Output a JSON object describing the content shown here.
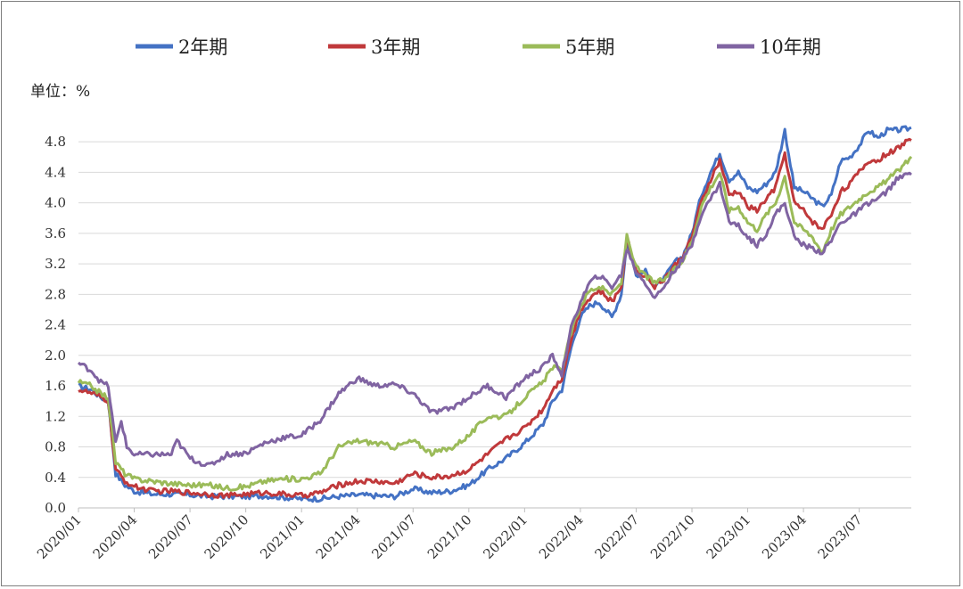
{
  "chart_data": {
    "type": "line",
    "title": "",
    "unit_label": "单位：%",
    "xlabel": "",
    "ylabel": "",
    "ylim": [
      0,
      4.8
    ],
    "yticks": [
      "0.0",
      "0.4",
      "0.8",
      "1.2",
      "1.6",
      "2.0",
      "2.4",
      "2.8",
      "3.2",
      "3.6",
      "4.0",
      "4.4",
      "4.8"
    ],
    "xrange": [
      0,
      44.8
    ],
    "xticks": [
      {
        "label": "2020/01",
        "month": 0
      },
      {
        "label": "2020/04",
        "month": 3
      },
      {
        "label": "2020/07",
        "month": 6
      },
      {
        "label": "2020/10",
        "month": 9
      },
      {
        "label": "2021/01",
        "month": 12
      },
      {
        "label": "2021/04",
        "month": 15
      },
      {
        "label": "2021/07",
        "month": 18
      },
      {
        "label": "2021/10",
        "month": 21
      },
      {
        "label": "2022/01",
        "month": 24
      },
      {
        "label": "2022/04",
        "month": 27
      },
      {
        "label": "2022/07",
        "month": 30
      },
      {
        "label": "2022/10",
        "month": 33
      },
      {
        "label": "2023/01",
        "month": 36
      },
      {
        "label": "2023/04",
        "month": 39
      },
      {
        "label": "2023/07",
        "month": 42
      }
    ],
    "legend_position": "top",
    "grid": true,
    "series": [
      {
        "name": "2年期",
        "color": "#4472c4",
        "points": [
          [
            0,
            1.6
          ],
          [
            0.7,
            1.55
          ],
          [
            1.2,
            1.45
          ],
          [
            1.6,
            1.4
          ],
          [
            2.0,
            0.45
          ],
          [
            2.5,
            0.3
          ],
          [
            3,
            0.22
          ],
          [
            4,
            0.18
          ],
          [
            5,
            0.18
          ],
          [
            6,
            0.17
          ],
          [
            7,
            0.15
          ],
          [
            8,
            0.15
          ],
          [
            9,
            0.15
          ],
          [
            10,
            0.16
          ],
          [
            11,
            0.14
          ],
          [
            12,
            0.12
          ],
          [
            13,
            0.12
          ],
          [
            14,
            0.15
          ],
          [
            15,
            0.17
          ],
          [
            16,
            0.16
          ],
          [
            17,
            0.15
          ],
          [
            18,
            0.25
          ],
          [
            19,
            0.2
          ],
          [
            20,
            0.22
          ],
          [
            21,
            0.3
          ],
          [
            22,
            0.5
          ],
          [
            23,
            0.65
          ],
          [
            24,
            0.85
          ],
          [
            25,
            1.1
          ],
          [
            25.5,
            1.4
          ],
          [
            26,
            1.55
          ],
          [
            26.5,
            2.1
          ],
          [
            27,
            2.5
          ],
          [
            27.5,
            2.65
          ],
          [
            28,
            2.7
          ],
          [
            28.7,
            2.5
          ],
          [
            29.2,
            2.8
          ],
          [
            29.5,
            3.5
          ],
          [
            30,
            3.05
          ],
          [
            30.5,
            3.1
          ],
          [
            31,
            2.9
          ],
          [
            31.5,
            3.0
          ],
          [
            32,
            3.2
          ],
          [
            32.5,
            3.3
          ],
          [
            33,
            3.6
          ],
          [
            33.5,
            4.1
          ],
          [
            34,
            4.4
          ],
          [
            34.5,
            4.65
          ],
          [
            35,
            4.3
          ],
          [
            35.5,
            4.4
          ],
          [
            36,
            4.2
          ],
          [
            36.5,
            4.15
          ],
          [
            37,
            4.25
          ],
          [
            37.5,
            4.4
          ],
          [
            38,
            4.95
          ],
          [
            38.5,
            4.2
          ],
          [
            39,
            4.15
          ],
          [
            39.5,
            4.05
          ],
          [
            40,
            3.95
          ],
          [
            40.5,
            4.1
          ],
          [
            41,
            4.55
          ],
          [
            41.5,
            4.6
          ],
          [
            42,
            4.75
          ],
          [
            42.5,
            4.95
          ],
          [
            43,
            4.85
          ],
          [
            43.5,
            4.95
          ],
          [
            44,
            4.95
          ],
          [
            44.8,
            4.98
          ]
        ]
      },
      {
        "name": "3年期",
        "color": "#c0393b",
        "points": [
          [
            0,
            1.55
          ],
          [
            0.7,
            1.5
          ],
          [
            1.2,
            1.45
          ],
          [
            1.6,
            1.4
          ],
          [
            2.0,
            0.5
          ],
          [
            2.5,
            0.35
          ],
          [
            3,
            0.28
          ],
          [
            4,
            0.22
          ],
          [
            5,
            0.22
          ],
          [
            6,
            0.2
          ],
          [
            7,
            0.18
          ],
          [
            8,
            0.16
          ],
          [
            9,
            0.18
          ],
          [
            10,
            0.2
          ],
          [
            11,
            0.18
          ],
          [
            12,
            0.16
          ],
          [
            13,
            0.2
          ],
          [
            14,
            0.3
          ],
          [
            15,
            0.35
          ],
          [
            16,
            0.35
          ],
          [
            17,
            0.32
          ],
          [
            18,
            0.45
          ],
          [
            19,
            0.4
          ],
          [
            20,
            0.42
          ],
          [
            21,
            0.5
          ],
          [
            22,
            0.7
          ],
          [
            23,
            0.9
          ],
          [
            24,
            1.05
          ],
          [
            25,
            1.3
          ],
          [
            25.5,
            1.55
          ],
          [
            26,
            1.7
          ],
          [
            26.5,
            2.2
          ],
          [
            27,
            2.6
          ],
          [
            27.5,
            2.75
          ],
          [
            28,
            2.85
          ],
          [
            28.7,
            2.7
          ],
          [
            29.2,
            2.9
          ],
          [
            29.5,
            3.55
          ],
          [
            30,
            3.1
          ],
          [
            30.5,
            3.05
          ],
          [
            31,
            2.9
          ],
          [
            31.5,
            3.0
          ],
          [
            32,
            3.15
          ],
          [
            32.5,
            3.3
          ],
          [
            33,
            3.55
          ],
          [
            33.5,
            4.0
          ],
          [
            34,
            4.3
          ],
          [
            34.5,
            4.55
          ],
          [
            35,
            4.1
          ],
          [
            35.5,
            4.15
          ],
          [
            36,
            3.95
          ],
          [
            36.5,
            3.9
          ],
          [
            37,
            4.05
          ],
          [
            37.5,
            4.2
          ],
          [
            38,
            4.65
          ],
          [
            38.5,
            4.0
          ],
          [
            39,
            3.9
          ],
          [
            39.5,
            3.75
          ],
          [
            40,
            3.65
          ],
          [
            40.5,
            3.85
          ],
          [
            41,
            4.15
          ],
          [
            41.5,
            4.25
          ],
          [
            42,
            4.4
          ],
          [
            42.5,
            4.55
          ],
          [
            43,
            4.55
          ],
          [
            43.5,
            4.65
          ],
          [
            44,
            4.7
          ],
          [
            44.8,
            4.85
          ]
        ]
      },
      {
        "name": "5年期",
        "color": "#9bbb59",
        "points": [
          [
            0,
            1.65
          ],
          [
            0.7,
            1.6
          ],
          [
            1.2,
            1.5
          ],
          [
            1.6,
            1.45
          ],
          [
            2.0,
            0.6
          ],
          [
            2.5,
            0.45
          ],
          [
            3,
            0.38
          ],
          [
            4,
            0.35
          ],
          [
            5,
            0.32
          ],
          [
            6,
            0.3
          ],
          [
            7,
            0.3
          ],
          [
            8,
            0.26
          ],
          [
            9,
            0.28
          ],
          [
            10,
            0.35
          ],
          [
            11,
            0.38
          ],
          [
            12,
            0.38
          ],
          [
            13,
            0.45
          ],
          [
            14,
            0.8
          ],
          [
            15,
            0.88
          ],
          [
            16,
            0.85
          ],
          [
            17,
            0.8
          ],
          [
            18,
            0.88
          ],
          [
            19,
            0.72
          ],
          [
            20,
            0.78
          ],
          [
            21,
            0.95
          ],
          [
            22,
            1.2
          ],
          [
            23,
            1.2
          ],
          [
            24,
            1.45
          ],
          [
            25,
            1.65
          ],
          [
            25.5,
            1.85
          ],
          [
            26,
            1.8
          ],
          [
            26.5,
            2.3
          ],
          [
            27,
            2.65
          ],
          [
            27.5,
            2.85
          ],
          [
            28,
            2.9
          ],
          [
            28.7,
            2.8
          ],
          [
            29.2,
            2.95
          ],
          [
            29.5,
            3.58
          ],
          [
            30,
            3.15
          ],
          [
            30.5,
            3.05
          ],
          [
            31,
            2.95
          ],
          [
            31.5,
            3.0
          ],
          [
            32,
            3.1
          ],
          [
            32.5,
            3.25
          ],
          [
            33,
            3.5
          ],
          [
            33.5,
            3.95
          ],
          [
            34,
            4.2
          ],
          [
            34.5,
            4.4
          ],
          [
            35,
            3.9
          ],
          [
            35.5,
            3.95
          ],
          [
            36,
            3.75
          ],
          [
            36.5,
            3.65
          ],
          [
            37,
            3.85
          ],
          [
            37.5,
            4.0
          ],
          [
            38,
            4.35
          ],
          [
            38.5,
            3.75
          ],
          [
            39,
            3.65
          ],
          [
            39.5,
            3.55
          ],
          [
            40,
            3.35
          ],
          [
            40.5,
            3.65
          ],
          [
            41,
            3.85
          ],
          [
            41.5,
            3.95
          ],
          [
            42,
            4.05
          ],
          [
            42.5,
            4.15
          ],
          [
            43,
            4.2
          ],
          [
            43.5,
            4.3
          ],
          [
            44,
            4.4
          ],
          [
            44.8,
            4.6
          ]
        ]
      },
      {
        "name": "10年期",
        "color": "#8064a2",
        "points": [
          [
            0,
            1.9
          ],
          [
            0.7,
            1.8
          ],
          [
            1.2,
            1.65
          ],
          [
            1.6,
            1.6
          ],
          [
            2.0,
            0.85
          ],
          [
            2.3,
            1.15
          ],
          [
            2.6,
            0.8
          ],
          [
            3,
            0.7
          ],
          [
            4,
            0.7
          ],
          [
            5,
            0.7
          ],
          [
            5.3,
            0.88
          ],
          [
            6,
            0.65
          ],
          [
            7,
            0.55
          ],
          [
            8,
            0.7
          ],
          [
            9,
            0.72
          ],
          [
            10,
            0.85
          ],
          [
            11,
            0.92
          ],
          [
            12,
            0.95
          ],
          [
            13,
            1.15
          ],
          [
            14,
            1.5
          ],
          [
            15,
            1.7
          ],
          [
            16,
            1.6
          ],
          [
            17,
            1.62
          ],
          [
            18,
            1.5
          ],
          [
            19,
            1.25
          ],
          [
            20,
            1.3
          ],
          [
            21,
            1.45
          ],
          [
            22,
            1.6
          ],
          [
            23,
            1.45
          ],
          [
            24,
            1.7
          ],
          [
            25,
            1.85
          ],
          [
            25.5,
            2.0
          ],
          [
            26,
            1.75
          ],
          [
            26.5,
            2.35
          ],
          [
            27,
            2.7
          ],
          [
            27.5,
            2.95
          ],
          [
            28,
            3.05
          ],
          [
            28.7,
            2.9
          ],
          [
            29.2,
            3.05
          ],
          [
            29.5,
            3.4
          ],
          [
            30,
            3.1
          ],
          [
            30.5,
            2.95
          ],
          [
            31,
            2.75
          ],
          [
            31.5,
            2.9
          ],
          [
            32,
            3.1
          ],
          [
            32.5,
            3.25
          ],
          [
            33,
            3.45
          ],
          [
            33.5,
            3.85
          ],
          [
            34,
            4.05
          ],
          [
            34.5,
            4.25
          ],
          [
            35,
            3.75
          ],
          [
            35.5,
            3.7
          ],
          [
            36,
            3.55
          ],
          [
            36.5,
            3.45
          ],
          [
            37,
            3.6
          ],
          [
            37.5,
            3.85
          ],
          [
            38,
            4.0
          ],
          [
            38.5,
            3.55
          ],
          [
            39,
            3.45
          ],
          [
            39.5,
            3.4
          ],
          [
            40,
            3.35
          ],
          [
            40.5,
            3.5
          ],
          [
            41,
            3.75
          ],
          [
            41.5,
            3.8
          ],
          [
            42,
            3.9
          ],
          [
            42.5,
            4.0
          ],
          [
            43,
            4.05
          ],
          [
            43.5,
            4.15
          ],
          [
            44,
            4.3
          ],
          [
            44.8,
            4.4
          ]
        ]
      }
    ]
  }
}
